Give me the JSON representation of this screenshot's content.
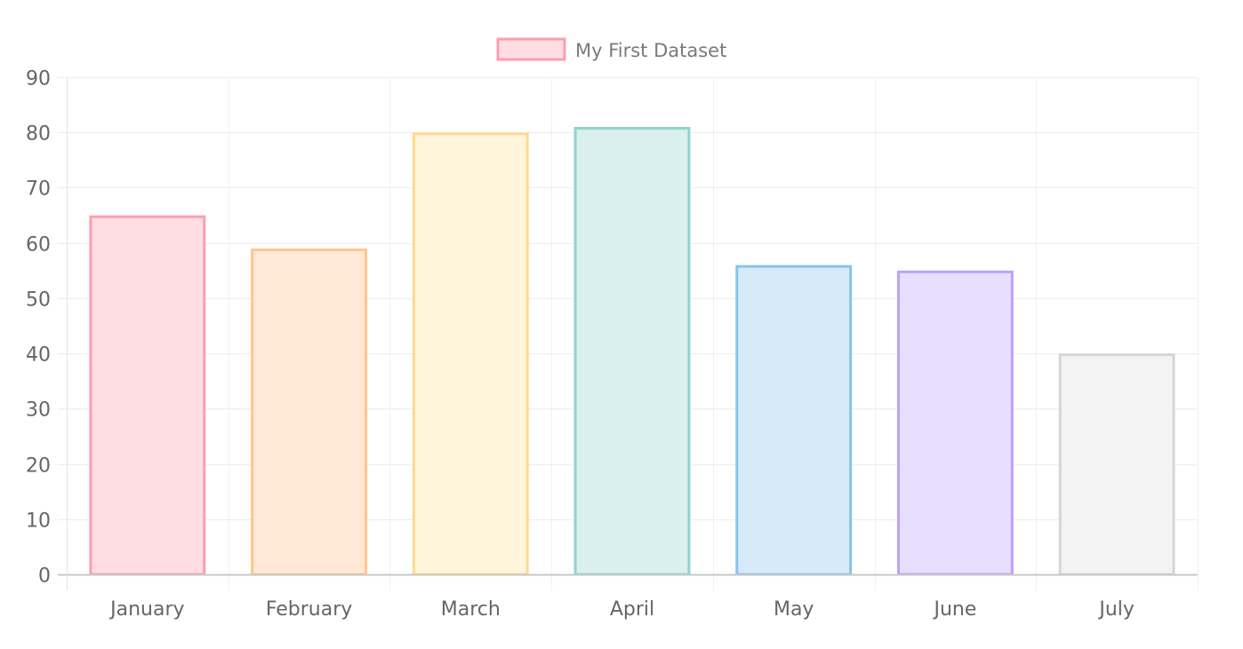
{
  "chart_data": {
    "type": "bar",
    "categories": [
      "January",
      "February",
      "March",
      "April",
      "May",
      "June",
      "July"
    ],
    "series": [
      {
        "name": "My First Dataset",
        "values": [
          65,
          59,
          80,
          81,
          56,
          55,
          40
        ],
        "fill_colors": [
          "#FFDDE3",
          "#FFE9D6",
          "#FFF4DC",
          "#D9F0EE",
          "#D6EAF9",
          "#E8DEFF",
          "#F3F3F4"
        ],
        "border_colors": [
          "#FF9DB0",
          "#FFC58F",
          "#FFDA8E",
          "#8FD4CF",
          "#86C4EC",
          "#B9A2FF",
          "#D4D5D7"
        ]
      }
    ],
    "title": "",
    "xlabel": "",
    "ylabel": "",
    "ylim": [
      0,
      90
    ],
    "yticks": [
      0,
      10,
      20,
      30,
      40,
      50,
      60,
      70,
      80,
      90
    ],
    "grid": true,
    "legend_position": "top-center",
    "legend_swatch_fill": "#FFDDE3",
    "legend_swatch_border": "#FF9DB0"
  }
}
